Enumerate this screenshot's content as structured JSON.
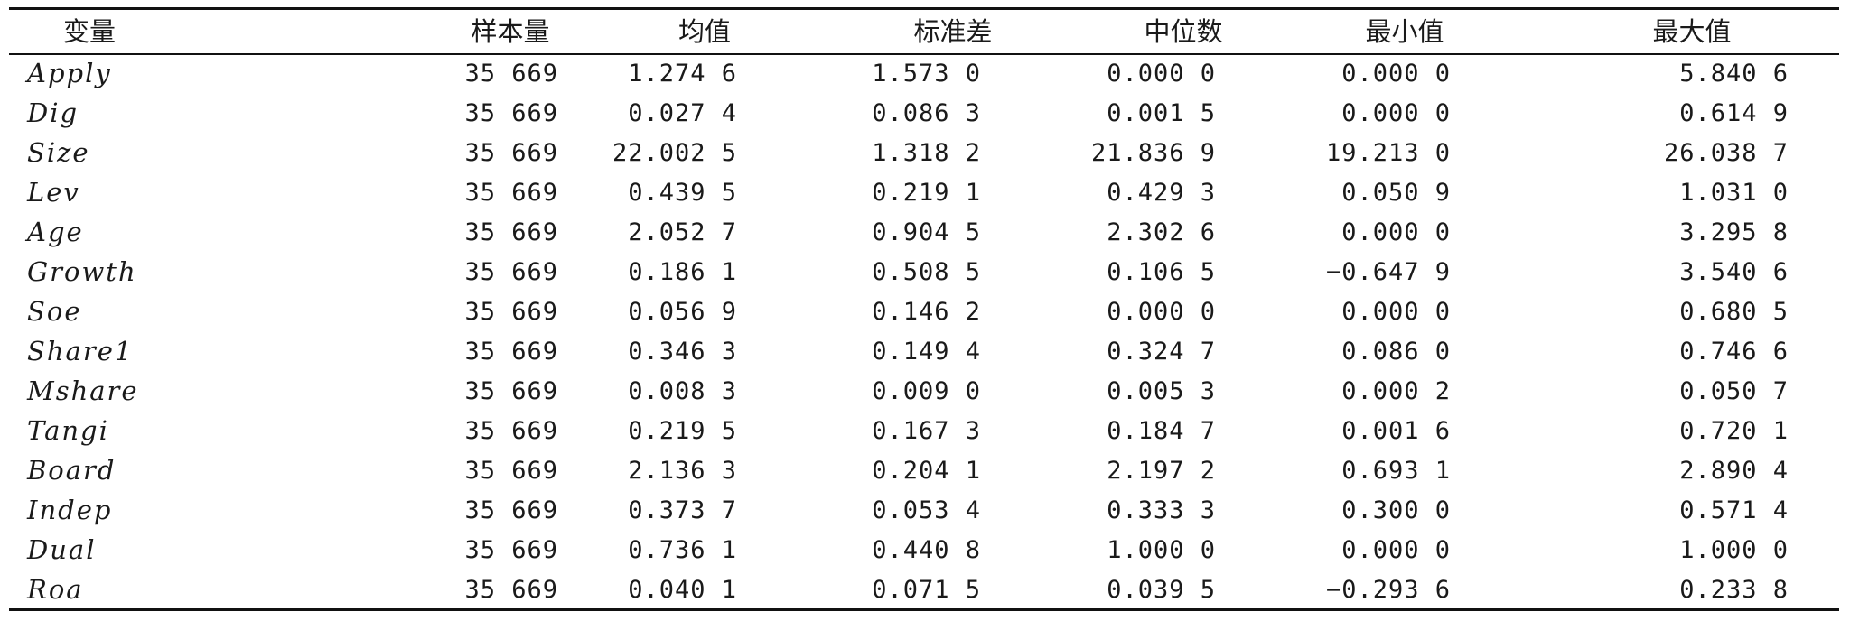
{
  "table": {
    "headers": [
      "变量",
      "样本量",
      "均值",
      "标准差",
      "中位数",
      "最小值",
      "最大值"
    ],
    "rows": [
      [
        "Apply",
        "35 669",
        "1.274 6",
        "1.573 0",
        "0.000 0",
        "0.000 0",
        "5.840 6"
      ],
      [
        "Dig",
        "35 669",
        "0.027 4",
        "0.086 3",
        "0.001 5",
        "0.000 0",
        "0.614 9"
      ],
      [
        "Size",
        "35 669",
        "22.002 5",
        "1.318 2",
        "21.836 9",
        "19.213 0",
        "26.038 7"
      ],
      [
        "Lev",
        "35 669",
        "0.439 5",
        "0.219 1",
        "0.429 3",
        "0.050 9",
        "1.031 0"
      ],
      [
        "Age",
        "35 669",
        "2.052 7",
        "0.904 5",
        "2.302 6",
        "0.000 0",
        "3.295 8"
      ],
      [
        "Growth",
        "35 669",
        "0.186 1",
        "0.508 5",
        "0.106 5",
        "−0.647 9",
        "3.540 6"
      ],
      [
        "Soe",
        "35 669",
        "0.056 9",
        "0.146 2",
        "0.000 0",
        "0.000 0",
        "0.680 5"
      ],
      [
        "Share1",
        "35 669",
        "0.346 3",
        "0.149 4",
        "0.324 7",
        "0.086 0",
        "0.746 6"
      ],
      [
        "Mshare",
        "35 669",
        "0.008 3",
        "0.009 0",
        "0.005 3",
        "0.000 2",
        "0.050 7"
      ],
      [
        "Tangi",
        "35 669",
        "0.219 5",
        "0.167 3",
        "0.184 7",
        "0.001 6",
        "0.720 1"
      ],
      [
        "Board",
        "35 669",
        "2.136 3",
        "0.204 1",
        "2.197 2",
        "0.693 1",
        "2.890 4"
      ],
      [
        "Indep",
        "35 669",
        "0.373 7",
        "0.053 4",
        "0.333 3",
        "0.300 0",
        "0.571 4"
      ],
      [
        "Dual",
        "35 669",
        "0.736 1",
        "0.440 8",
        "1.000 0",
        "0.000 0",
        "1.000 0"
      ],
      [
        "Roa",
        "35 669",
        "0.040 1",
        "0.071 5",
        "0.039 5",
        "−0.293 6",
        "0.233 8"
      ]
    ]
  }
}
